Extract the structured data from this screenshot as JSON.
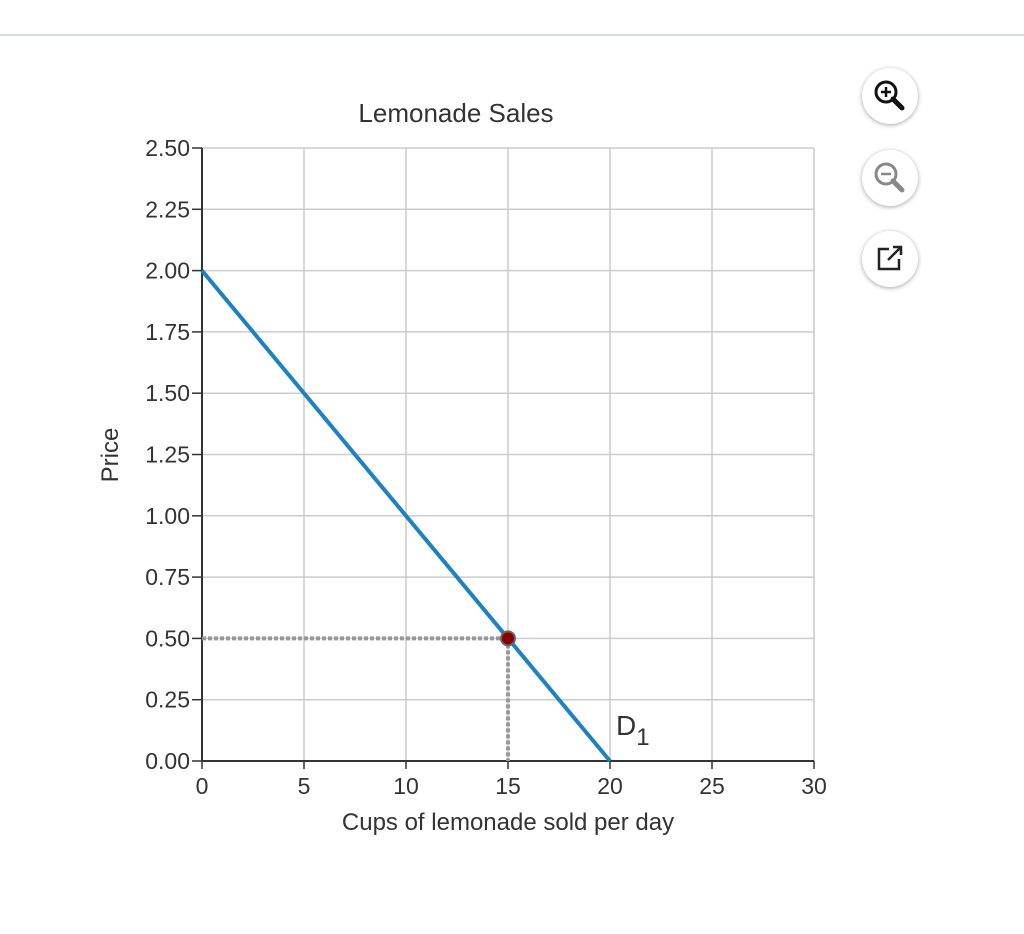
{
  "toolbar": {
    "zoom_in_icon": "zoom-in-icon",
    "zoom_out_icon": "zoom-out-icon",
    "popout_icon": "external-link-icon"
  },
  "chart_data": {
    "type": "line",
    "title": "Lemonade Sales",
    "xlabel": "Cups of lemonade sold per day",
    "ylabel": "Price",
    "xlim": [
      0,
      30
    ],
    "ylim": [
      0,
      2.5
    ],
    "grid": true,
    "x_ticks": [
      "0",
      "5",
      "10",
      "15",
      "20",
      "25",
      "30"
    ],
    "y_ticks": [
      "0.00",
      "0.25",
      "0.50",
      "0.75",
      "1.00",
      "1.25",
      "1.50",
      "1.75",
      "2.00",
      "2.25",
      "2.50"
    ],
    "series": [
      {
        "name": "D1",
        "label_main": "D",
        "label_sub": "1",
        "color": "#1f82c0",
        "points": [
          [
            0,
            2.0
          ],
          [
            20,
            0.0
          ]
        ]
      }
    ],
    "marker": {
      "x": 15,
      "y": 0.5,
      "color": "#8b0000"
    },
    "guides_color": "#999999"
  }
}
